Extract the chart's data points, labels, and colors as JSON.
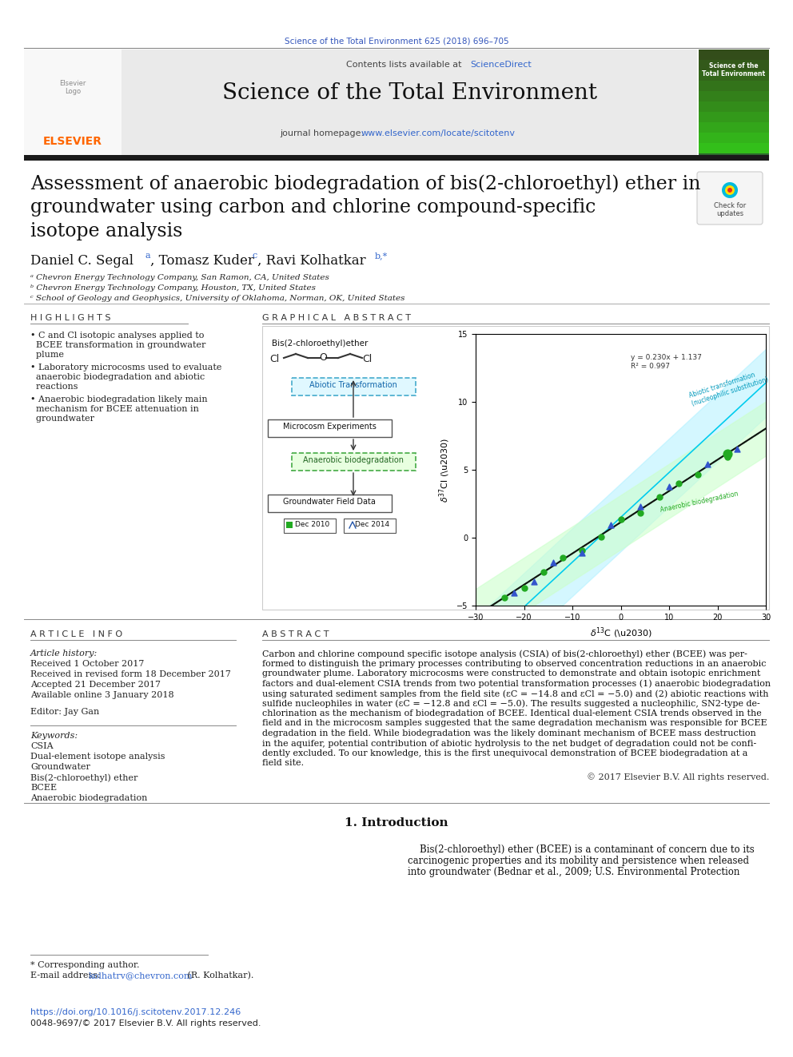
{
  "journal_ref": "Science of the Total Environment 625 (2018) 696–705",
  "journal_ref_color": "#3355bb",
  "header_bg": "#e8eaf0",
  "contents_text": "Contents lists available at ",
  "sciencedirect_text": "ScienceDirect",
  "sciencedirect_color": "#3366cc",
  "journal_title": "Science of the Total Environment",
  "journal_homepage_pre": "journal homepage: ",
  "journal_homepage_url": "www.elsevier.com/locate/scitotenv",
  "journal_homepage_color": "#3366cc",
  "paper_title_line1": "Assessment of anaerobic biodegradation of bis(2-chloroethyl) ether in",
  "paper_title_line2": "groundwater using carbon and chlorine compound-specific",
  "paper_title_line3": "isotope analysis",
  "author_line": "Daniel C. Segal",
  "affil_a": "ᵃ Chevron Energy Technology Company, San Ramon, CA, United States",
  "affil_b": "ᵇ Chevron Energy Technology Company, Houston, TX, United States",
  "affil_c": "ᶜ School of Geology and Geophysics, University of Oklahoma, Norman, OK, United States",
  "highlights_title": "H I G H L I G H T S",
  "highlights": [
    "C and Cl isotopic analyses applied to BCEE transformation in groundwater plume",
    "Laboratory microcosms used to evaluate anaerobic biodegradation and abiotic reactions",
    "Anaerobic biodegradation likely main mechanism for BCEE attenuation in groundwater"
  ],
  "graphical_abstract_title": "G R A P H I C A L   A B S T R A C T",
  "article_info_title": "A R T I C L E   I N F O",
  "article_history_label": "Article history:",
  "received1": "Received 1 October 2017",
  "received_revised": "Received in revised form 18 December 2017",
  "accepted": "Accepted 21 December 2017",
  "available": "Available online 3 January 2018",
  "editor_label": "Editor: Jay Gan",
  "keywords_label": "Keywords:",
  "keywords": [
    "CSIA",
    "Dual-element isotope analysis",
    "Groundwater",
    "Bis(2-chloroethyl) ether",
    "BCEE",
    "Anaerobic biodegradation"
  ],
  "abstract_title": "A B S T R A C T",
  "copyright": "© 2017 Elsevier B.V. All rights reserved.",
  "intro_heading": "1. Introduction",
  "doi_text": "https://doi.org/10.1016/j.scitotenv.2017.12.246",
  "doi_color": "#3366cc",
  "issn_text": "0048-9697/© 2017 Elsevier B.V. All rights reserved.",
  "corr_author_text": "* Corresponding author.",
  "email_label": "E-mail address: ",
  "email": "kolhatrv@chevron.com",
  "email_color": "#3366cc",
  "email_suffix": " (R. Kolhatkar).",
  "background_color": "#ffffff",
  "text_color": "#000000",
  "elsevier_color": "#ff6600",
  "abstract_lines": [
    "Carbon and chlorine compound specific isotope analysis (CSIA) of bis(2-chloroethyl) ether (BCEE) was per-",
    "formed to distinguish the primary processes contributing to observed concentration reductions in an anaerobic",
    "groundwater plume. Laboratory microcosms were constructed to demonstrate and obtain isotopic enrichment",
    "factors and dual-element CSIA trends from two potential transformation processes (1) anaerobic biodegradation",
    "using saturated sediment samples from the field site (εC = −14.8 and εCl = −5.0) and (2) abiotic reactions with",
    "sulfide nucleophiles in water (εC = −12.8 and εCl = −5.0). The results suggested a nucleophilic, SN2-type de-",
    "chlorination as the mechanism of biodegradation of BCEE. Identical dual-element CSIA trends observed in the",
    "field and in the microcosm samples suggested that the same degradation mechanism was responsible for BCEE",
    "degradation in the field. While biodegradation was the likely dominant mechanism of BCEE mass destruction",
    "in the aquifer, potential contribution of abiotic hydrolysis to the net budget of degradation could not be confi-",
    "dently excluded. To our knowledge, this is the first unequivocal demonstration of BCEE biodegradation at a",
    "field site."
  ],
  "intro_lines": [
    "    Bis(2-chloroethyl) ether (BCEE) is a contaminant of concern due to its",
    "carcinogenic properties and its mobility and persistence when released",
    "into groundwater (Bednar et al., 2009; U.S. Environmental Protection"
  ]
}
